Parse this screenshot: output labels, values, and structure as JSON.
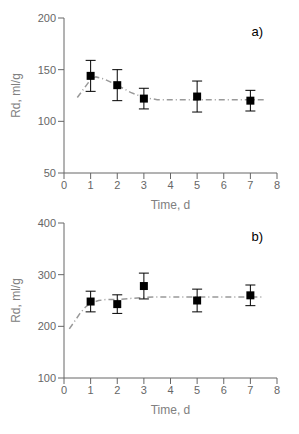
{
  "chart_data": [
    {
      "type": "line",
      "annotation": "a)",
      "xlabel": "Time, d",
      "ylabel": "Rd, ml/g",
      "xlim": [
        0,
        8
      ],
      "ylim": [
        50,
        200
      ],
      "xticks": [
        0,
        1,
        2,
        3,
        4,
        5,
        6,
        7,
        8
      ],
      "yticks": [
        50,
        100,
        150,
        200
      ],
      "grid": false,
      "series": [
        {
          "type": "line",
          "color": "#999999",
          "line_style": "dashdot",
          "x": [
            0.5,
            0.7,
            0.9,
            1.0,
            1.2,
            1.5,
            2.0,
            2.5,
            3.0,
            3.5,
            4.0,
            4.5,
            5.0,
            5.5,
            6.0,
            6.5,
            7.0,
            7.5
          ],
          "values": [
            123,
            130,
            137,
            141,
            143,
            141,
            135,
            128,
            123,
            121,
            121,
            121,
            121,
            121,
            121,
            121,
            121,
            121
          ]
        },
        {
          "type": "scatter",
          "color": "#000000",
          "marker": "square",
          "x": [
            1,
            2,
            3,
            5,
            7
          ],
          "values": [
            144,
            135,
            122,
            124,
            120
          ],
          "error": [
            15,
            15,
            10,
            15,
            10
          ]
        }
      ]
    },
    {
      "type": "line",
      "annotation": "b)",
      "xlabel": "Time, d",
      "ylabel": "Rd, ml/g",
      "xlim": [
        0,
        8
      ],
      "ylim": [
        100,
        400
      ],
      "xticks": [
        0,
        1,
        2,
        3,
        4,
        5,
        6,
        7,
        8
      ],
      "yticks": [
        100,
        200,
        300,
        400
      ],
      "grid": false,
      "series": [
        {
          "type": "line",
          "color": "#999999",
          "line_style": "dashdot",
          "x": [
            0.2,
            0.4,
            0.6,
            0.8,
            1.0,
            1.3,
            1.6,
            2.0,
            2.5,
            3.0,
            3.5,
            4.0,
            4.5,
            5.0,
            5.5,
            6.0,
            6.5,
            7.0,
            7.5
          ],
          "values": [
            195,
            210,
            225,
            237,
            245,
            250,
            252,
            252,
            254,
            256,
            257,
            257,
            257,
            257,
            257,
            257,
            257,
            257,
            257
          ]
        },
        {
          "type": "scatter",
          "color": "#000000",
          "marker": "square",
          "x": [
            1,
            2,
            3,
            5,
            7
          ],
          "values": [
            248,
            243,
            278,
            250,
            260
          ],
          "error": [
            20,
            18,
            25,
            22,
            20
          ]
        }
      ]
    }
  ]
}
